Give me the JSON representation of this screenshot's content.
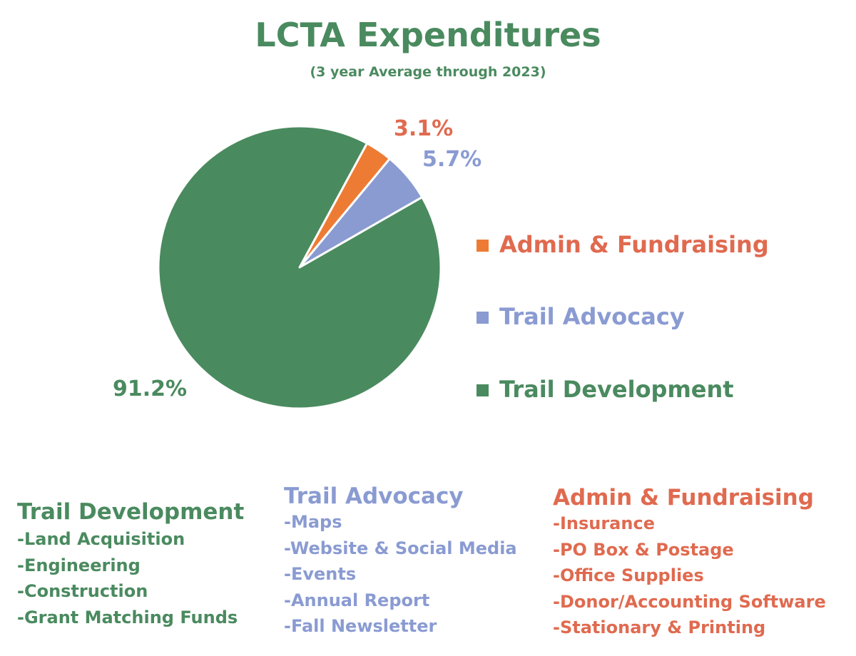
{
  "title": "LCTA Expenditures",
  "subtitle": "(3 year Average through 2023)",
  "colors": {
    "development": "#4a8a5f",
    "advocacy": "#8a9bd2",
    "admin": "#ee7b33",
    "admin_text": "#e06a4f",
    "advocacy_text": "#8a9bd2",
    "development_text": "#4a8a5f"
  },
  "chart_data": {
    "type": "pie",
    "title": "LCTA Expenditures",
    "subtitle": "(3 year Average through 2023)",
    "slices": [
      {
        "name": "Admin & Fundraising",
        "value": 3.1,
        "label": "3.1%",
        "color": "#ee7b33"
      },
      {
        "name": "Trail Advocacy",
        "value": 5.7,
        "label": "5.7%",
        "color": "#8a9bd2"
      },
      {
        "name": "Trail Development",
        "value": 91.2,
        "label": "91.2%",
        "color": "#4a8a5f"
      }
    ],
    "legend": [
      "Admin & Fundraising",
      "Trail Advocacy",
      "Trail Development"
    ],
    "legend_position": "right"
  },
  "details": {
    "development": {
      "title": "Trail Development",
      "items": [
        "-Land Acquisition",
        "-Engineering",
        "-Construction",
        "-Grant Matching Funds"
      ]
    },
    "advocacy": {
      "title": "Trail Advocacy",
      "items": [
        "-Maps",
        "-Website & Social Media",
        "-Events",
        "-Annual Report",
        "-Fall Newsletter"
      ]
    },
    "admin": {
      "title": "Admin & Fundraising",
      "items": [
        "-Insurance",
        "-PO Box & Postage",
        "-Office Supplies",
        "-Donor/Accounting Software",
        "-Stationary & Printing"
      ]
    }
  }
}
